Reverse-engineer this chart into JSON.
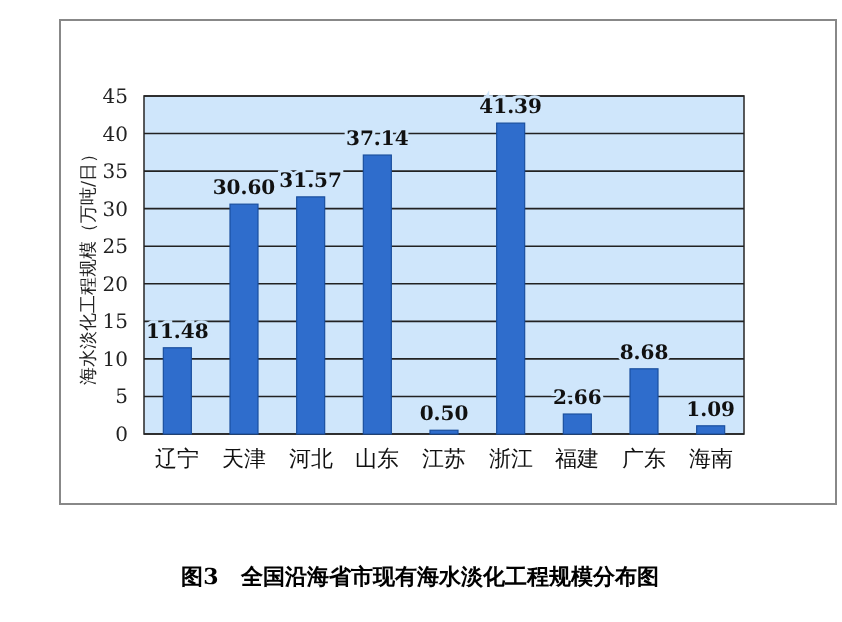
{
  "chart_data": {
    "type": "bar",
    "title": "图3　全国沿海省市现有海水淡化工程规模分布图",
    "ylabel": "海水淡化工程规模（万吨/日）",
    "categories": [
      "辽宁",
      "天津",
      "河北",
      "山东",
      "江苏",
      "浙江",
      "福建",
      "广东",
      "海南"
    ],
    "values": [
      11.48,
      30.6,
      31.57,
      37.14,
      0.5,
      41.39,
      2.66,
      8.68,
      1.09
    ],
    "value_labels": [
      "11.48",
      "30.60",
      "31.57",
      "37.14",
      "0.50",
      "41.39",
      "2.66",
      "8.68",
      "1.09"
    ],
    "color": "#2f6dcc",
    "ylim": [
      0,
      45
    ],
    "yticks": [
      0,
      5,
      10,
      15,
      20,
      25,
      30,
      35,
      40,
      45
    ],
    "grid": "y"
  }
}
